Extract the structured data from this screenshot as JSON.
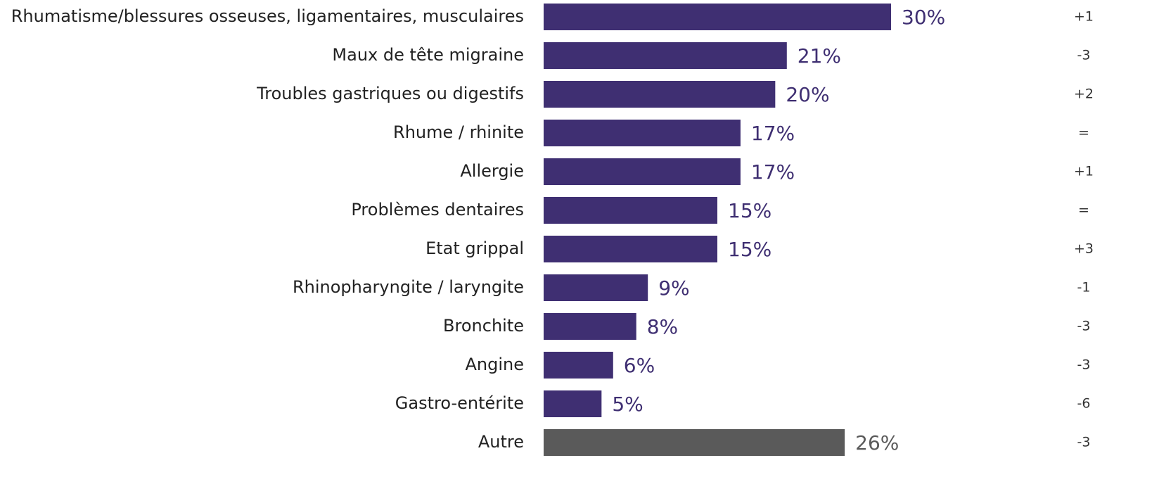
{
  "chart_data": {
    "type": "hbar",
    "categories": [
      "Rhumatisme/blessures osseuses, ligamentaires, musculaires",
      "Maux de tête migraine",
      "Troubles gastriques ou digestifs",
      "Rhume / rhinite",
      "Allergie",
      "Problèmes dentaires",
      "Etat grippal",
      "Rhinopharyngite / laryngite",
      "Bronchite",
      "Angine",
      "Gastro-entérite",
      "Autre"
    ],
    "values": [
      30,
      21,
      20,
      17,
      17,
      15,
      15,
      9,
      8,
      6,
      5,
      26
    ],
    "value_labels": [
      "30%",
      "21%",
      "20%",
      "17%",
      "17%",
      "15%",
      "15%",
      "9%",
      "8%",
      "6%",
      "5%",
      "26%"
    ],
    "changes": [
      "+1",
      "-3",
      "+2",
      "=",
      "+1",
      "=",
      "+3",
      "-1",
      "-3",
      "-3",
      "-6",
      "-3"
    ],
    "colors": [
      "#3f2f72",
      "#3f2f72",
      "#3f2f72",
      "#3f2f72",
      "#3f2f72",
      "#3f2f72",
      "#3f2f72",
      "#3f2f72",
      "#3f2f72",
      "#3f2f72",
      "#3f2f72",
      "#5a5a5a"
    ]
  }
}
